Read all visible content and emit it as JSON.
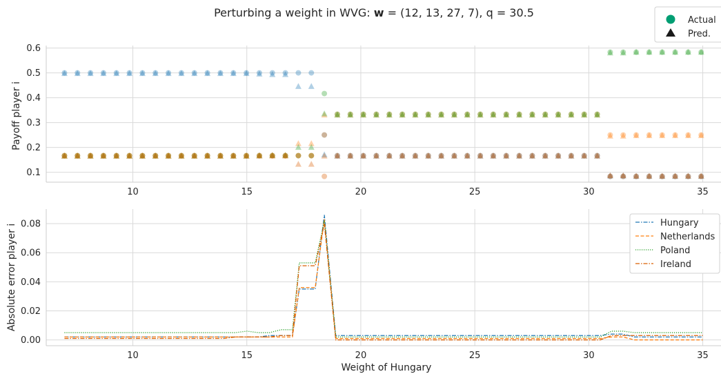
{
  "figure": {
    "title_prefix": "Perturbing a weight in WVG: ",
    "title_bold": "w",
    "title_suffix": " = (12, 13, 27, 7), q = 30.5"
  },
  "colors": {
    "Hungary": "#1f77b4",
    "Netherlands": "#ff7f0e",
    "Poland": "#2ca02c",
    "Ireland": "#d95f02",
    "legend_actual": "#009e73",
    "legend_pred": "#1a1a1a",
    "grid": "#d9d9d9",
    "axis": "#cccccc"
  },
  "chart_data": [
    {
      "type": "scatter",
      "ylabel": "Payoff player i",
      "xlim": [
        6.2,
        35.8
      ],
      "ylim": [
        0.06,
        0.61
      ],
      "xticks": [
        10,
        15,
        20,
        25,
        30,
        35
      ],
      "yticks": [
        0.1,
        0.2,
        0.3,
        0.4,
        0.5,
        0.6
      ],
      "grid": true,
      "legend": {
        "position": "top-right",
        "entries": [
          "Actual",
          "Pred."
        ]
      },
      "x": [
        7.0,
        7.57,
        8.14,
        8.71,
        9.28,
        9.85,
        10.42,
        10.99,
        11.56,
        12.13,
        12.7,
        13.27,
        13.84,
        14.41,
        14.98,
        15.55,
        16.12,
        16.69,
        17.26,
        17.83,
        18.4,
        18.97,
        19.54,
        20.11,
        20.68,
        21.25,
        21.82,
        22.39,
        22.96,
        23.53,
        24.1,
        24.67,
        25.24,
        25.81,
        26.38,
        26.95,
        27.52,
        28.09,
        28.66,
        29.23,
        29.8,
        30.37,
        30.94,
        31.51,
        32.08,
        32.65,
        33.22,
        33.79,
        34.36,
        34.93
      ],
      "series": [
        {
          "name": "Hungary",
          "kind": "Actual",
          "values": [
            0.5,
            0.5,
            0.5,
            0.5,
            0.5,
            0.5,
            0.5,
            0.5,
            0.5,
            0.5,
            0.5,
            0.5,
            0.5,
            0.5,
            0.5,
            0.5,
            0.5,
            0.5,
            0.5,
            0.5,
            0.25,
            0.1667,
            0.1667,
            0.1667,
            0.1667,
            0.1667,
            0.1667,
            0.1667,
            0.1667,
            0.1667,
            0.1667,
            0.1667,
            0.1667,
            0.1667,
            0.1667,
            0.1667,
            0.1667,
            0.1667,
            0.1667,
            0.1667,
            0.1667,
            0.1667,
            0.0833,
            0.0833,
            0.0833,
            0.0833,
            0.0833,
            0.0833,
            0.0833,
            0.0833
          ]
        },
        {
          "name": "Hungary",
          "kind": "Pred.",
          "values": [
            0.497,
            0.497,
            0.497,
            0.497,
            0.497,
            0.497,
            0.497,
            0.497,
            0.497,
            0.497,
            0.497,
            0.497,
            0.497,
            0.497,
            0.497,
            0.495,
            0.493,
            0.493,
            0.445,
            0.445,
            0.17,
            0.165,
            0.165,
            0.165,
            0.165,
            0.165,
            0.165,
            0.165,
            0.165,
            0.165,
            0.165,
            0.165,
            0.165,
            0.165,
            0.165,
            0.165,
            0.165,
            0.165,
            0.165,
            0.165,
            0.165,
            0.165,
            0.085,
            0.085,
            0.083,
            0.083,
            0.083,
            0.083,
            0.083,
            0.083
          ]
        },
        {
          "name": "Netherlands",
          "kind": "Actual",
          "values": [
            0.1667,
            0.1667,
            0.1667,
            0.1667,
            0.1667,
            0.1667,
            0.1667,
            0.1667,
            0.1667,
            0.1667,
            0.1667,
            0.1667,
            0.1667,
            0.1667,
            0.1667,
            0.1667,
            0.1667,
            0.1667,
            0.1667,
            0.1667,
            0.25,
            0.3333,
            0.3333,
            0.3333,
            0.3333,
            0.3333,
            0.3333,
            0.3333,
            0.3333,
            0.3333,
            0.3333,
            0.3333,
            0.3333,
            0.3333,
            0.3333,
            0.3333,
            0.3333,
            0.3333,
            0.3333,
            0.3333,
            0.3333,
            0.3333,
            0.25,
            0.25,
            0.25,
            0.25,
            0.25,
            0.25,
            0.25,
            0.25
          ]
        },
        {
          "name": "Netherlands",
          "kind": "Pred.",
          "values": [
            0.165,
            0.165,
            0.165,
            0.165,
            0.165,
            0.165,
            0.165,
            0.165,
            0.165,
            0.165,
            0.165,
            0.165,
            0.165,
            0.165,
            0.165,
            0.167,
            0.168,
            0.168,
            0.215,
            0.215,
            0.33,
            0.33,
            0.33,
            0.33,
            0.33,
            0.33,
            0.33,
            0.33,
            0.33,
            0.33,
            0.33,
            0.33,
            0.33,
            0.33,
            0.33,
            0.33,
            0.33,
            0.33,
            0.33,
            0.33,
            0.33,
            0.33,
            0.245,
            0.245,
            0.247,
            0.247,
            0.247,
            0.247,
            0.247,
            0.247
          ]
        },
        {
          "name": "Poland",
          "kind": "Actual",
          "values": [
            0.1667,
            0.1667,
            0.1667,
            0.1667,
            0.1667,
            0.1667,
            0.1667,
            0.1667,
            0.1667,
            0.1667,
            0.1667,
            0.1667,
            0.1667,
            0.1667,
            0.1667,
            0.1667,
            0.1667,
            0.1667,
            0.1667,
            0.1667,
            0.4167,
            0.3333,
            0.3333,
            0.3333,
            0.3333,
            0.3333,
            0.3333,
            0.3333,
            0.3333,
            0.3333,
            0.3333,
            0.3333,
            0.3333,
            0.3333,
            0.3333,
            0.3333,
            0.3333,
            0.3333,
            0.3333,
            0.3333,
            0.3333,
            0.3333,
            0.5833,
            0.5833,
            0.5833,
            0.5833,
            0.5833,
            0.5833,
            0.5833,
            0.5833
          ]
        },
        {
          "name": "Poland",
          "kind": "Pred.",
          "values": [
            0.165,
            0.165,
            0.165,
            0.165,
            0.165,
            0.165,
            0.165,
            0.165,
            0.165,
            0.165,
            0.165,
            0.165,
            0.165,
            0.165,
            0.165,
            0.166,
            0.167,
            0.167,
            0.2,
            0.2,
            0.335,
            0.33,
            0.33,
            0.33,
            0.33,
            0.33,
            0.33,
            0.33,
            0.33,
            0.33,
            0.33,
            0.33,
            0.33,
            0.33,
            0.33,
            0.33,
            0.33,
            0.33,
            0.33,
            0.33,
            0.33,
            0.33,
            0.58,
            0.58,
            0.583,
            0.583,
            0.583,
            0.583,
            0.583,
            0.583
          ]
        },
        {
          "name": "Ireland",
          "kind": "Actual",
          "values": [
            0.1667,
            0.1667,
            0.1667,
            0.1667,
            0.1667,
            0.1667,
            0.1667,
            0.1667,
            0.1667,
            0.1667,
            0.1667,
            0.1667,
            0.1667,
            0.1667,
            0.1667,
            0.1667,
            0.1667,
            0.1667,
            0.1667,
            0.1667,
            0.0833,
            0.1667,
            0.1667,
            0.1667,
            0.1667,
            0.1667,
            0.1667,
            0.1667,
            0.1667,
            0.1667,
            0.1667,
            0.1667,
            0.1667,
            0.1667,
            0.1667,
            0.1667,
            0.1667,
            0.1667,
            0.1667,
            0.1667,
            0.1667,
            0.1667,
            0.0833,
            0.0833,
            0.0833,
            0.0833,
            0.0833,
            0.0833,
            0.0833,
            0.0833
          ]
        },
        {
          "name": "Ireland",
          "kind": "Pred.",
          "values": [
            0.165,
            0.165,
            0.165,
            0.165,
            0.165,
            0.165,
            0.165,
            0.165,
            0.165,
            0.165,
            0.165,
            0.165,
            0.165,
            0.165,
            0.165,
            0.165,
            0.165,
            0.165,
            0.132,
            0.132,
            0.165,
            0.165,
            0.165,
            0.165,
            0.165,
            0.165,
            0.165,
            0.165,
            0.165,
            0.165,
            0.165,
            0.165,
            0.165,
            0.165,
            0.165,
            0.165,
            0.165,
            0.165,
            0.165,
            0.165,
            0.165,
            0.165,
            0.086,
            0.086,
            0.084,
            0.084,
            0.084,
            0.084,
            0.084,
            0.084
          ]
        }
      ]
    },
    {
      "type": "line",
      "xlabel": "Weight of Hungary",
      "ylabel": "Absolute error player i",
      "xlim": [
        6.2,
        35.8
      ],
      "ylim": [
        -0.004,
        0.09
      ],
      "xticks": [
        10,
        15,
        20,
        25,
        30,
        35
      ],
      "yticks": [
        0.0,
        0.02,
        0.04,
        0.06,
        0.08
      ],
      "ytick_labels": [
        "0.00",
        "0.02",
        "0.04",
        "0.06",
        "0.08"
      ],
      "grid": true,
      "legend": {
        "position": "top-right",
        "entries": [
          "Hungary",
          "Netherlands",
          "Poland",
          "Ireland"
        ]
      },
      "x": [
        7.0,
        7.5,
        8.0,
        8.5,
        9.0,
        9.5,
        10.0,
        10.5,
        11.0,
        11.5,
        12.0,
        12.5,
        13.0,
        13.5,
        14.0,
        14.5,
        15.0,
        15.5,
        16.0,
        16.5,
        17.0,
        17.3,
        17.8,
        18.0,
        18.4,
        18.9,
        19.4,
        20.0,
        21.0,
        22.0,
        23.0,
        24.0,
        25.0,
        26.0,
        27.0,
        28.0,
        29.0,
        30.0,
        30.5,
        31.0,
        31.5,
        32.0,
        33.0,
        34.0,
        35.0
      ],
      "series": [
        {
          "name": "Hungary",
          "style": "dashdot",
          "values": [
            0.002,
            0.002,
            0.002,
            0.002,
            0.002,
            0.002,
            0.002,
            0.002,
            0.002,
            0.002,
            0.002,
            0.002,
            0.002,
            0.002,
            0.002,
            0.002,
            0.002,
            0.002,
            0.003,
            0.003,
            0.003,
            0.035,
            0.035,
            0.035,
            0.086,
            0.003,
            0.003,
            0.003,
            0.003,
            0.003,
            0.003,
            0.003,
            0.003,
            0.003,
            0.003,
            0.003,
            0.003,
            0.003,
            0.003,
            0.004,
            0.004,
            0.002,
            0.002,
            0.002,
            0.002
          ]
        },
        {
          "name": "Netherlands",
          "style": "dashed",
          "values": [
            0.002,
            0.002,
            0.002,
            0.002,
            0.002,
            0.002,
            0.002,
            0.002,
            0.002,
            0.002,
            0.002,
            0.002,
            0.002,
            0.002,
            0.002,
            0.002,
            0.002,
            0.002,
            0.002,
            0.002,
            0.002,
            0.036,
            0.036,
            0.036,
            0.083,
            0.001,
            0.001,
            0.001,
            0.001,
            0.001,
            0.001,
            0.001,
            0.001,
            0.001,
            0.001,
            0.001,
            0.001,
            0.001,
            0.001,
            0.002,
            0.002,
            0.0,
            0.0,
            0.0,
            0.0
          ]
        },
        {
          "name": "Poland",
          "style": "dotted",
          "values": [
            0.005,
            0.005,
            0.005,
            0.005,
            0.005,
            0.005,
            0.005,
            0.005,
            0.005,
            0.005,
            0.005,
            0.005,
            0.005,
            0.005,
            0.005,
            0.005,
            0.006,
            0.005,
            0.005,
            0.007,
            0.007,
            0.053,
            0.053,
            0.053,
            0.082,
            0.002,
            0.002,
            0.002,
            0.002,
            0.002,
            0.002,
            0.002,
            0.002,
            0.002,
            0.002,
            0.002,
            0.002,
            0.002,
            0.002,
            0.006,
            0.006,
            0.005,
            0.005,
            0.005,
            0.005
          ]
        },
        {
          "name": "Ireland",
          "style": "dashdot",
          "values": [
            0.001,
            0.001,
            0.001,
            0.001,
            0.001,
            0.001,
            0.001,
            0.001,
            0.001,
            0.001,
            0.001,
            0.001,
            0.001,
            0.001,
            0.001,
            0.002,
            0.002,
            0.002,
            0.002,
            0.003,
            0.003,
            0.051,
            0.051,
            0.051,
            0.08,
            0.0,
            0.0,
            0.0,
            0.0,
            0.0,
            0.0,
            0.0,
            0.0,
            0.0,
            0.0,
            0.0,
            0.0,
            0.0,
            0.0,
            0.003,
            0.003,
            0.003,
            0.003,
            0.003,
            0.003
          ]
        }
      ]
    }
  ]
}
